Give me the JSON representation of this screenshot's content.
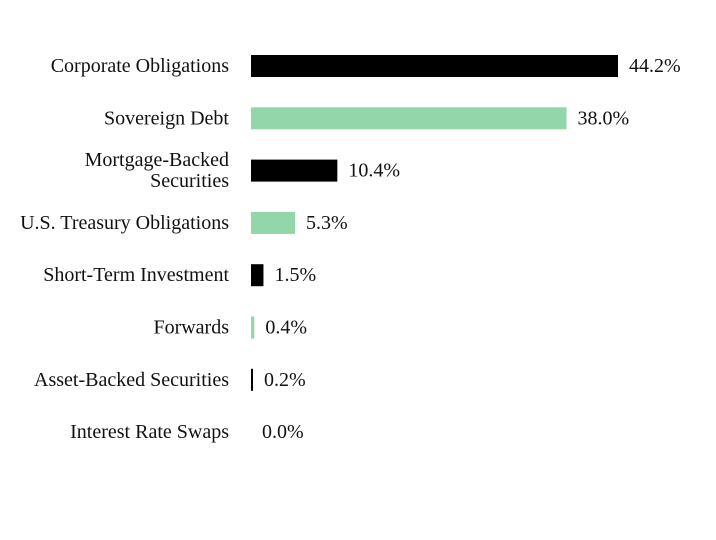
{
  "chart_data": {
    "type": "bar",
    "orientation": "horizontal",
    "title": "",
    "xlabel": "",
    "ylabel": "",
    "xlim": [
      0,
      50
    ],
    "grid": false,
    "legend": "none",
    "colors": [
      "#000000",
      "#92d6aa"
    ],
    "categories": [
      "Corporate Obligations",
      "Sovereign Debt",
      "Mortgage-Backed Securities",
      "U.S. Treasury Obligations",
      "Short-Term Investment",
      "Forwards",
      "Asset-Backed Securities",
      "Interest Rate Swaps"
    ],
    "category_label_lines": [
      [
        "Corporate Obligations"
      ],
      [
        "Sovereign Debt"
      ],
      [
        "Mortgage-Backed",
        "Securities"
      ],
      [
        "U.S. Treasury Obligations"
      ],
      [
        "Short-Term Investment"
      ],
      [
        "Forwards"
      ],
      [
        "Asset-Backed Securities"
      ],
      [
        "Interest Rate Swaps"
      ]
    ],
    "values": [
      44.2,
      38.0,
      10.4,
      5.3,
      1.5,
      0.4,
      0.2,
      0.0
    ],
    "value_labels": [
      "44.2%",
      "38.0%",
      "10.4%",
      "5.3%",
      "1.5%",
      "0.4%",
      "0.2%",
      "0.0%"
    ]
  }
}
